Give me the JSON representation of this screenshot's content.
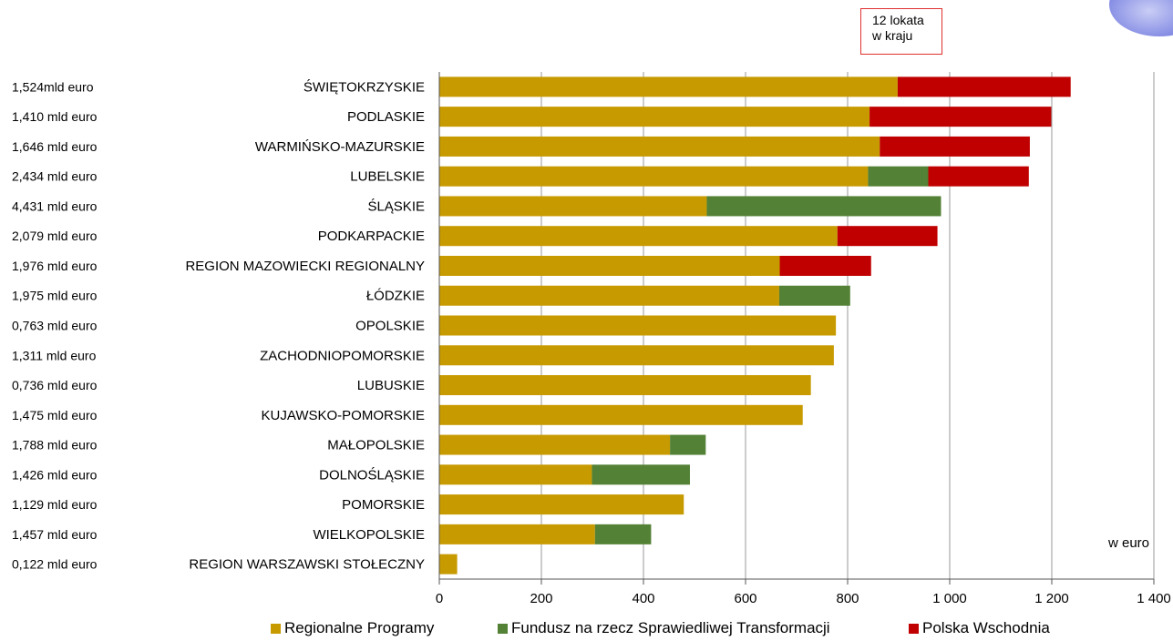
{
  "chart_data": {
    "type": "bar",
    "orientation": "horizontal",
    "stacked": true,
    "categories": [
      "ŚWIĘTOKRZYSKIE",
      "PODLASKIE",
      "WARMIŃSKO-MAZURSKIE",
      "LUBELSKIE",
      "ŚLĄSKIE",
      "PODKARPACKIE",
      "REGION MAZOWIECKI REGIONALNY",
      "ŁÓDZKIE",
      "OPOLSKIE",
      "ZACHODNIOPOMORSKIE",
      "LUBUSKIE",
      "KUJAWSKO-POMORSKIE",
      "MAŁOPOLSKIE",
      "DOLNOŚLĄSKIE",
      "POMORSKIE",
      "WIELKOPOLSKIE",
      "REGION WARSZAWSKI STOŁECZNY"
    ],
    "row_values_text": [
      "1,524mld euro",
      "1,410 mld euro",
      "1,646 mld euro",
      "2,434 mld euro",
      "4,431 mld euro",
      "2,079 mld euro",
      "1,976 mld euro",
      "1,975 mld euro",
      "0,763 mld euro",
      "1,311 mld euro",
      "0,736 mld euro",
      "1,475 mld euro",
      "1,788 mld euro",
      "1,426 mld euro",
      "1,129 mld euro",
      "1,457 mld euro",
      "0,122 mld euro"
    ],
    "series": [
      {
        "name": "Regionalne Programy",
        "color": "#c79a00",
        "values": [
          898,
          843,
          863,
          840,
          524,
          780,
          667,
          666,
          777,
          773,
          728,
          712,
          452,
          299,
          479,
          305,
          35
        ]
      },
      {
        "name": "Fundusz na rzecz Sprawiedliwej Transformacji",
        "color": "#538135",
        "values": [
          0,
          0,
          0,
          118,
          459,
          0,
          0,
          139,
          0,
          0,
          0,
          0,
          70,
          192,
          0,
          110,
          0
        ]
      },
      {
        "name": "Polska Wschodnia",
        "color": "#c00000",
        "values": [
          339,
          356,
          294,
          197,
          0,
          196,
          179,
          0,
          0,
          0,
          0,
          0,
          0,
          0,
          0,
          0,
          0
        ]
      }
    ],
    "xlim": [
      0,
      1400
    ],
    "x_ticks": [
      0,
      200,
      400,
      600,
      800,
      1000,
      1200,
      1400
    ],
    "x_tick_labels": [
      "0",
      "200",
      "400",
      "600",
      "800",
      "1 000",
      "1 200",
      "1 400"
    ],
    "grid": "vertical",
    "legend_position": "bottom",
    "unit_label": "w euro",
    "annotation": [
      "12 lokata",
      "w kraju"
    ]
  }
}
